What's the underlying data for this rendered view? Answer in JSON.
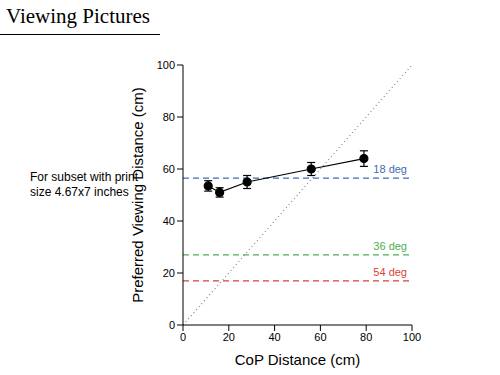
{
  "chart_data": {
    "type": "line",
    "title": "Viewing Pictures",
    "subtitle": "For subset with print size 4.67x7 inches",
    "x_label": "CoP Distance (cm)",
    "y_label": "Preferred Viewing Distance (cm)",
    "xlim": [
      0,
      100
    ],
    "ylim": [
      0,
      100
    ],
    "xticks": [
      0,
      20,
      40,
      60,
      80,
      100
    ],
    "yticks": [
      0,
      20,
      40,
      60,
      80,
      100
    ],
    "grid": false,
    "series": [
      {
        "x": [
          11,
          16,
          28,
          56,
          79
        ],
        "values": [
          53.5,
          51,
          55,
          60,
          64
        ],
        "errors": [
          2,
          1.8,
          2.5,
          2.5,
          3
        ],
        "color": "#000000",
        "marker": "circle",
        "line_style": "solid"
      },
      {
        "x": [
          0,
          100
        ],
        "values": [
          0,
          100
        ],
        "color": "#888888",
        "marker": "none",
        "line_style": "dotted"
      }
    ],
    "reference_lines": [
      {
        "y": 56.5,
        "label": "18 deg",
        "color": "#3d6db5",
        "line_style": "dashed"
      },
      {
        "y": 27,
        "label": "36 deg",
        "color": "#4caf50",
        "line_style": "dashed"
      },
      {
        "y": 17,
        "label": "54 deg",
        "color": "#d9423a",
        "line_style": "dashed"
      }
    ]
  }
}
